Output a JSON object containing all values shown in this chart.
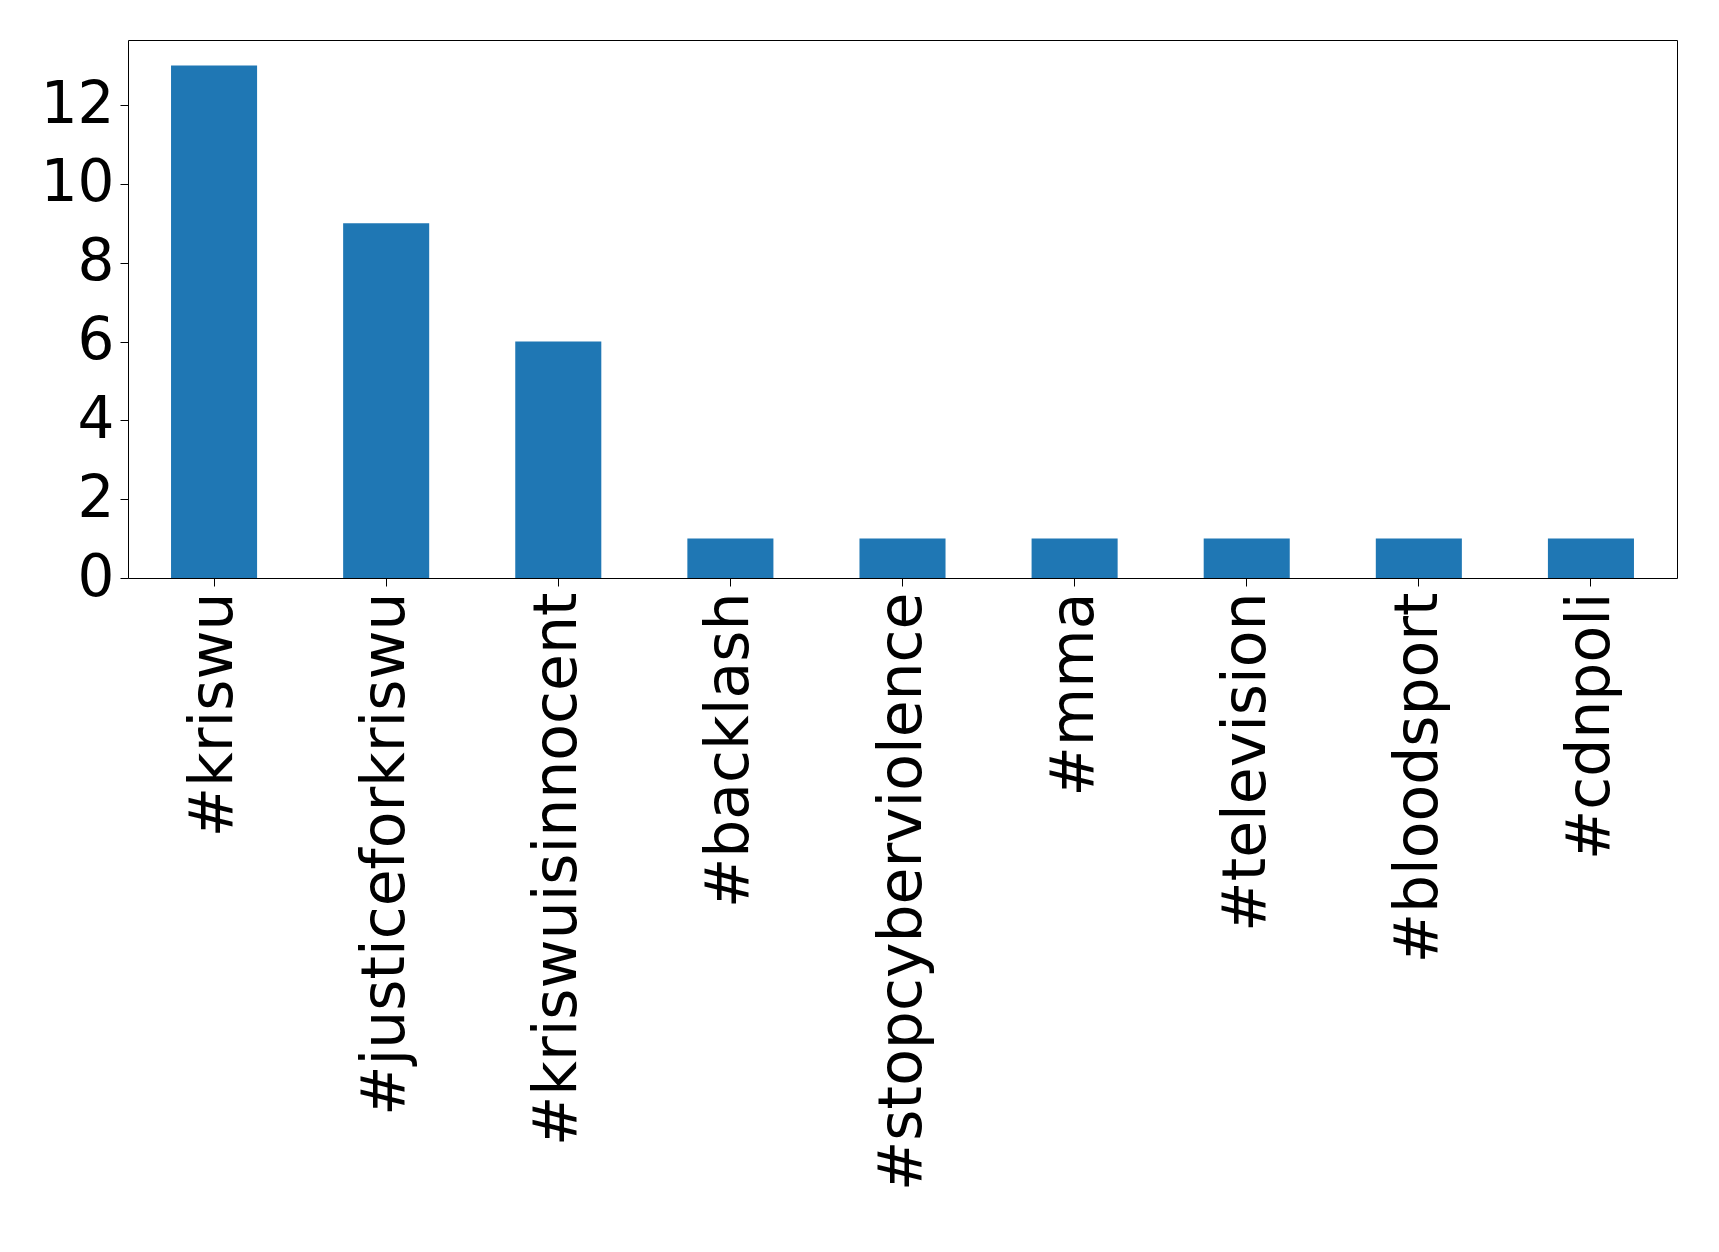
{
  "chart_data": {
    "type": "bar",
    "categories": [
      "#kriswu",
      "#justiceforkriswu",
      "#kriswuisinnocent",
      "#backlash",
      "#stopcyberviolence",
      "#mma",
      "#television",
      "#bloodsport",
      "#cdnpoli"
    ],
    "values": [
      13,
      9,
      6,
      1,
      1,
      1,
      1,
      1,
      1
    ],
    "color": "#1f77b4",
    "ylim": [
      0,
      13.65
    ],
    "yticks": [
      0,
      2,
      4,
      6,
      8,
      10,
      12
    ],
    "grid": false
  }
}
